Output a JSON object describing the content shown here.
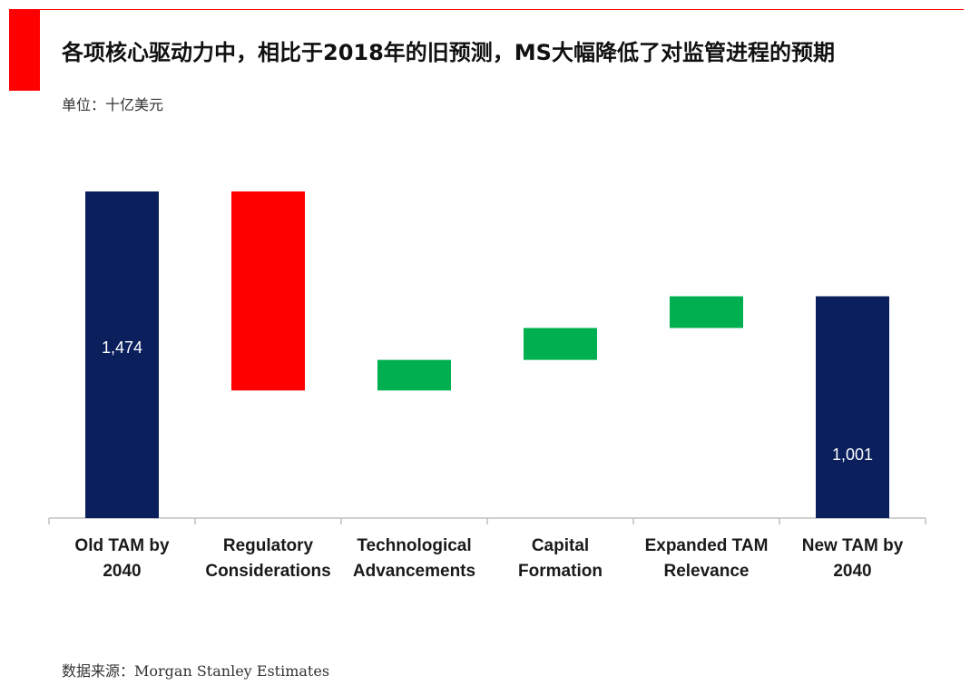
{
  "header": {
    "title": "各项核心驱动力中，相比于2018年的旧预测，MS大幅降低了对监管进程的预期",
    "unit": "单位：十亿美元"
  },
  "footer": {
    "source": "数据来源：Morgan Stanley Estimates"
  },
  "colors": {
    "accent": "#ff0000",
    "total": "#0a1f5c",
    "decrease": "#ff0000",
    "increase": "#00b050"
  },
  "chart_data": {
    "type": "bar",
    "subtype": "waterfall",
    "title": "",
    "xlabel": "",
    "ylabel": "",
    "ylim": [
      0,
      1474
    ],
    "grid": false,
    "legend": "none",
    "categories": [
      [
        "Old TAM by",
        "2040"
      ],
      [
        "Regulatory",
        "Considerations"
      ],
      [
        "Technological",
        "Advancements"
      ],
      [
        "Capital",
        "Formation"
      ],
      [
        "Expanded TAM",
        "Relevance"
      ],
      [
        "New TAM by",
        "2040"
      ]
    ],
    "bars": [
      {
        "kind": "total",
        "start": 0,
        "end": 1474,
        "label": "1,474"
      },
      {
        "kind": "decrease",
        "start": 1474,
        "end": 576,
        "label": ""
      },
      {
        "kind": "increase",
        "start": 576,
        "end": 714,
        "label": ""
      },
      {
        "kind": "increase",
        "start": 714,
        "end": 858,
        "label": ""
      },
      {
        "kind": "increase",
        "start": 858,
        "end": 1001,
        "label": ""
      },
      {
        "kind": "total",
        "start": 0,
        "end": 1001,
        "label": "1,001"
      }
    ]
  }
}
